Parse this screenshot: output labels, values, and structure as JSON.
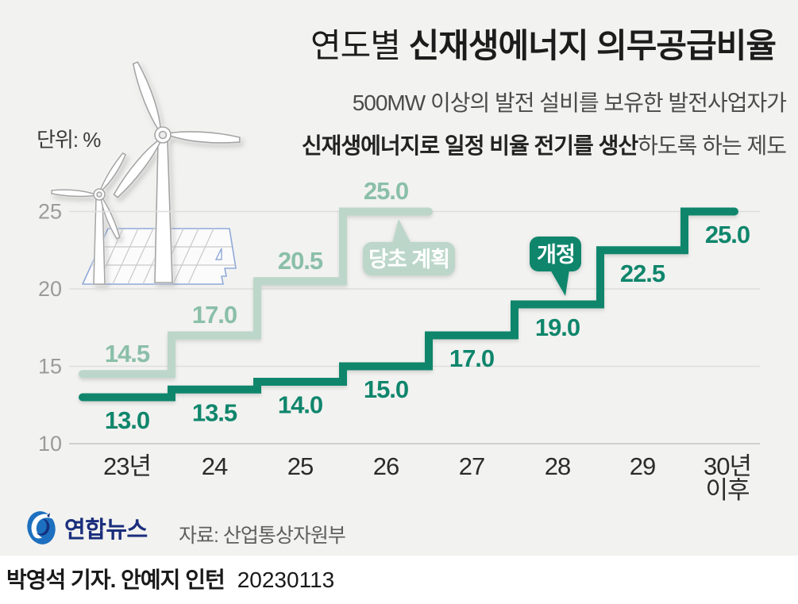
{
  "title": {
    "prefix": "연도별 ",
    "emphasis": "신재생에너지 의무공급비율"
  },
  "subtitle": {
    "line1": "500MW 이상의 발전 설비를 보유한 발전사업자가",
    "line2_bold": "신재생에너지로 일정 비율 전기를 생산",
    "line2_rest": "하도록 하는 제도"
  },
  "chart_data": {
    "type": "line",
    "subtype": "step",
    "title": "연도별 신재생에너지 의무공급비율",
    "unit_label": "단위: %",
    "xlabel": "",
    "ylabel": "%",
    "categories": [
      "23년",
      "24",
      "25",
      "26",
      "27",
      "28",
      "29",
      "30년 이후"
    ],
    "x_tick_lines": [
      [
        "23년"
      ],
      [
        "24"
      ],
      [
        "25"
      ],
      [
        "26"
      ],
      [
        "27"
      ],
      [
        "28"
      ],
      [
        "29"
      ],
      [
        "30년",
        "이후"
      ]
    ],
    "ylim": [
      10,
      25
    ],
    "yticks": [
      25,
      20,
      15,
      10
    ],
    "grid": true,
    "legend_position": "inline-callouts",
    "series": [
      {
        "name": "당초 계획",
        "values": [
          14.5,
          17.0,
          20.5,
          25.0
        ],
        "color": "#bcd7ca",
        "label_color": "#8abfa8",
        "label_side": "above"
      },
      {
        "name": "개정",
        "values": [
          13.0,
          13.5,
          14.0,
          15.0,
          17.0,
          19.0,
          22.5,
          25.0
        ],
        "color": "#0f866c",
        "label_color": "#0f866c",
        "label_side": "below"
      }
    ]
  },
  "colors": {
    "background": "#f2f2f0",
    "footer_background": "#ffffff",
    "dark_green": "#0f866c",
    "light_green": "#bcd7ca",
    "light_green_label": "#8abfa8",
    "gridline": "#dedede",
    "axis_line": "#c4c4c4",
    "logo_navy": "#1a2e7c",
    "logo_blue": "#1d70bf"
  },
  "footer": {
    "logo_text": "연합뉴스",
    "source": "자료: 산업통상자원부",
    "credit": "박영석 기자. 안예지 인턴",
    "date": "20230113"
  }
}
